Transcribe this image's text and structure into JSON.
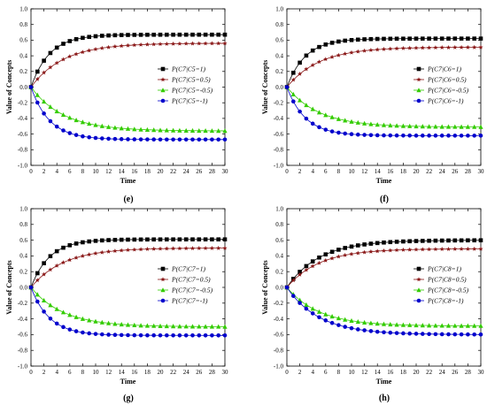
{
  "chart_data": [
    {
      "type": "line",
      "panel_label": "(e)",
      "xlabel": "Time",
      "ylabel": "Value of Concepts",
      "xlim": [
        0,
        30
      ],
      "ylim": [
        -1.0,
        1.0
      ],
      "xticks": [
        0,
        2,
        4,
        6,
        8,
        10,
        12,
        14,
        16,
        18,
        20,
        22,
        24,
        26,
        28,
        30
      ],
      "yticks": [
        -1.0,
        -0.8,
        -0.6,
        -0.4,
        -0.2,
        0.0,
        0.2,
        0.4,
        0.6,
        0.8,
        1.0
      ],
      "grid": false,
      "legend": "right",
      "series": [
        {
          "name": "P(C7|C5=1)",
          "color": "#000000",
          "marker": "square",
          "final": 0.67
        },
        {
          "name": "P(C7|C5=0.5)",
          "color": "#8b1a1a",
          "marker": "star",
          "final": 0.56
        },
        {
          "name": "P(C7|C5=-0.5)",
          "color": "#33cc00",
          "marker": "triangle",
          "final": -0.56
        },
        {
          "name": "P(C7|C5=-1)",
          "color": "#0000cc",
          "marker": "circle",
          "final": -0.67
        }
      ]
    },
    {
      "type": "line",
      "panel_label": "(f)",
      "xlabel": "Time",
      "ylabel": "Value of Concepts",
      "xlim": [
        0,
        30
      ],
      "ylim": [
        -1.0,
        1.0
      ],
      "xticks": [
        0,
        2,
        4,
        6,
        8,
        10,
        12,
        14,
        16,
        18,
        20,
        22,
        24,
        26,
        28,
        30
      ],
      "yticks": [
        -1.0,
        -0.8,
        -0.6,
        -0.4,
        -0.2,
        0.0,
        0.2,
        0.4,
        0.6,
        0.8,
        1.0
      ],
      "grid": false,
      "legend": "right",
      "series": [
        {
          "name": "P(C7|C6=1)",
          "color": "#000000",
          "marker": "square",
          "final": 0.62
        },
        {
          "name": "P(C7|C6=0.5)",
          "color": "#8b1a1a",
          "marker": "star",
          "final": 0.51
        },
        {
          "name": "P(C7|C6=-0.5)",
          "color": "#33cc00",
          "marker": "triangle",
          "final": -0.51
        },
        {
          "name": "P(C7|C6=-1)",
          "color": "#0000cc",
          "marker": "circle",
          "final": -0.62
        }
      ]
    },
    {
      "type": "line",
      "panel_label": "(g)",
      "xlabel": "Time",
      "ylabel": "Value of Concepts",
      "xlim": [
        0,
        30
      ],
      "ylim": [
        -1.0,
        1.0
      ],
      "xticks": [
        0,
        2,
        4,
        6,
        8,
        10,
        12,
        14,
        16,
        18,
        20,
        22,
        24,
        26,
        28,
        30
      ],
      "yticks": [
        -1.0,
        -0.8,
        -0.6,
        -0.4,
        -0.2,
        0.0,
        0.2,
        0.4,
        0.6,
        0.8,
        1.0
      ],
      "grid": false,
      "legend": "right",
      "series": [
        {
          "name": "P(C7|C7=1)",
          "color": "#000000",
          "marker": "square",
          "final": 0.61
        },
        {
          "name": "P(C7|C7=0.5)",
          "color": "#8b1a1a",
          "marker": "star",
          "final": 0.5
        },
        {
          "name": "P(C7|C7=-0.5)",
          "color": "#33cc00",
          "marker": "triangle",
          "final": -0.5
        },
        {
          "name": "P(C7|C7=-1)",
          "color": "#0000cc",
          "marker": "circle",
          "final": -0.61
        }
      ]
    },
    {
      "type": "line",
      "panel_label": "(h)",
      "xlabel": "Time",
      "ylabel": "Value of Concepts",
      "xlim": [
        0,
        30
      ],
      "ylim": [
        -1.0,
        1.0
      ],
      "xticks": [
        0,
        2,
        4,
        6,
        8,
        10,
        12,
        14,
        16,
        18,
        20,
        22,
        24,
        26,
        28,
        30
      ],
      "yticks": [
        -1.0,
        -0.8,
        -0.6,
        -0.4,
        -0.2,
        0.0,
        0.2,
        0.4,
        0.6,
        0.8,
        1.0
      ],
      "grid": false,
      "legend": "right",
      "series": [
        {
          "name": "P(C7|C8=1)",
          "color": "#000000",
          "marker": "square",
          "final": 0.6
        },
        {
          "name": "P(C7|C8=0.5)",
          "color": "#8b1a1a",
          "marker": "star",
          "final": 0.49
        },
        {
          "name": "P(C7|C8=-0.5)",
          "color": "#33cc00",
          "marker": "triangle",
          "final": -0.49
        },
        {
          "name": "P(C7|C8=-1)",
          "color": "#0000cc",
          "marker": "circle",
          "final": -0.6
        }
      ]
    }
  ]
}
